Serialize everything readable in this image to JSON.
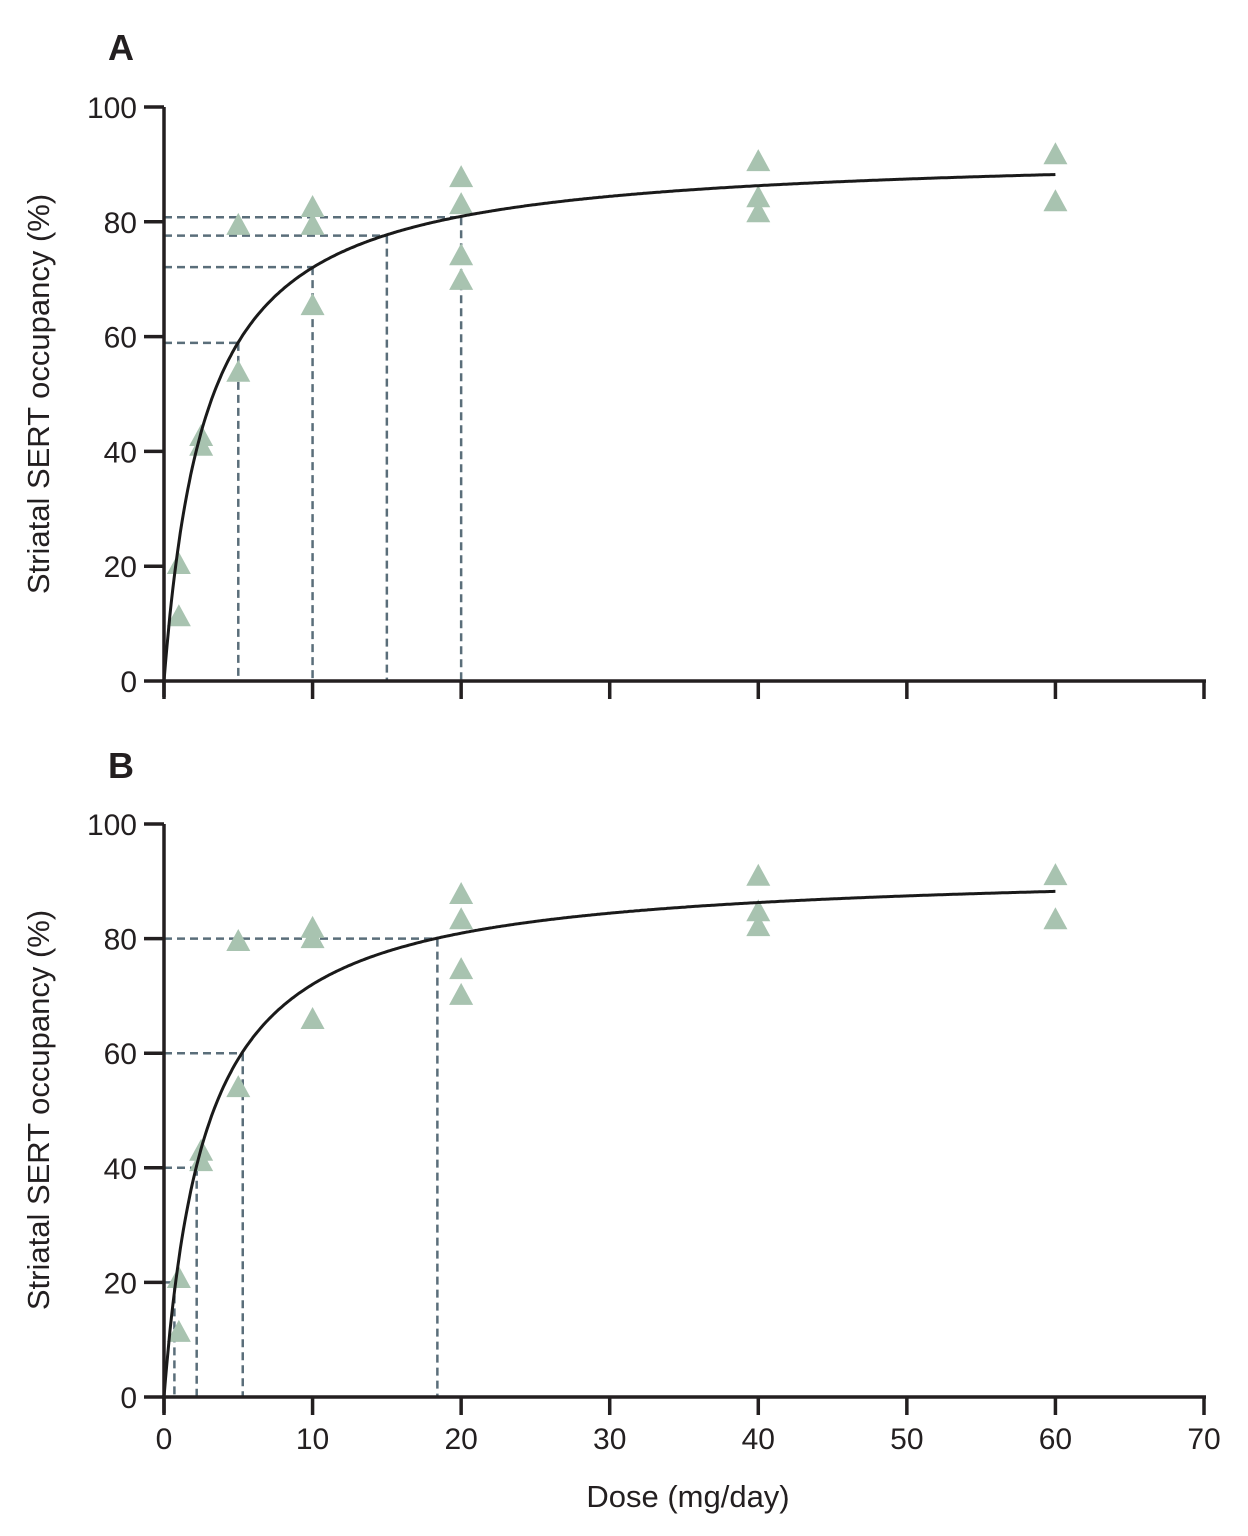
{
  "colors": {
    "marker": "#a8c3b0",
    "curve": "#1a1a1a",
    "reference": "#5a6e7a",
    "axis": "#231f20"
  },
  "chart_data": [
    {
      "panel": "A",
      "type": "scatter",
      "marker": "triangle",
      "ylabel": "Striatal SERT occupancy (%)",
      "xlabel": "",
      "xlim": [
        0,
        70
      ],
      "ylim": [
        0,
        100
      ],
      "xticks": [
        0,
        10,
        20,
        30,
        40,
        50,
        60,
        70
      ],
      "xtick_labels_shown": false,
      "yticks": [
        0,
        20,
        40,
        60,
        80,
        100
      ],
      "grid": false,
      "points": [
        [
          1,
          20.2
        ],
        [
          1,
          11.1
        ],
        [
          2.5,
          42.5
        ],
        [
          2.5,
          40.8
        ],
        [
          5,
          79.3
        ],
        [
          5,
          53.7
        ],
        [
          10,
          82.4
        ],
        [
          10,
          79.3
        ],
        [
          10,
          65.3
        ],
        [
          20,
          87.6
        ],
        [
          20,
          82.9
        ],
        [
          20,
          74.0
        ],
        [
          20,
          69.7
        ],
        [
          40,
          90.4
        ],
        [
          40,
          84.1
        ],
        [
          40,
          81.5
        ],
        [
          60,
          91.6
        ],
        [
          60,
          83.4
        ]
      ],
      "fit_curve": {
        "model": "Emax",
        "Emax": 92.4,
        "ED50": 2.83,
        "x_range": [
          0,
          60
        ]
      },
      "reference_lines": [
        {
          "dose": 5,
          "occupancy": 58.9
        },
        {
          "dose": 10,
          "occupancy": 72.1
        },
        {
          "dose": 15,
          "occupancy": 77.6
        },
        {
          "dose": 20,
          "occupancy": 80.8
        }
      ]
    },
    {
      "panel": "B",
      "type": "scatter",
      "marker": "triangle",
      "ylabel": "Striatal SERT occupancy (%)",
      "xlabel": "Dose (mg/day)",
      "xlim": [
        0,
        70
      ],
      "ylim": [
        0,
        100
      ],
      "xticks": [
        0,
        10,
        20,
        30,
        40,
        50,
        60,
        70
      ],
      "xtick_labels_shown": true,
      "yticks": [
        0,
        20,
        40,
        60,
        80,
        100
      ],
      "grid": false,
      "points": [
        [
          1,
          20.6
        ],
        [
          1,
          11.2
        ],
        [
          2.5,
          42.8
        ],
        [
          2.5,
          41.0
        ],
        [
          5,
          79.4
        ],
        [
          5,
          53.9
        ],
        [
          10,
          81.7
        ],
        [
          10,
          79.9
        ],
        [
          10,
          65.8
        ],
        [
          20,
          87.6
        ],
        [
          20,
          83.2
        ],
        [
          20,
          74.5
        ],
        [
          20,
          70.0
        ],
        [
          40,
          90.8
        ],
        [
          40,
          84.6
        ],
        [
          40,
          82.0
        ],
        [
          60,
          90.9
        ],
        [
          60,
          83.2
        ]
      ],
      "fit_curve": {
        "model": "Emax",
        "Emax": 92.4,
        "ED50": 2.83,
        "x_range": [
          0,
          60
        ]
      },
      "reference_lines": [
        {
          "dose": 0.7,
          "occupancy": 20
        },
        {
          "dose": 2.2,
          "occupancy": 40
        },
        {
          "dose": 5.3,
          "occupancy": 60
        },
        {
          "dose": 18.4,
          "occupancy": 80
        }
      ]
    }
  ]
}
